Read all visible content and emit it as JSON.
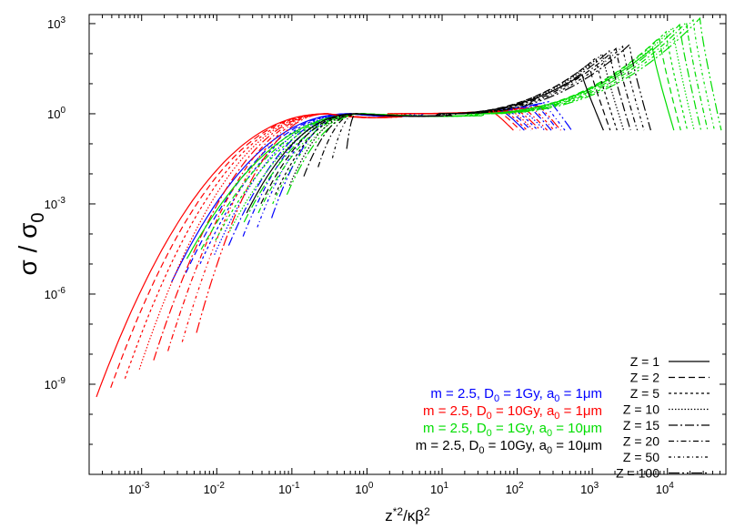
{
  "chart_data": {
    "type": "line",
    "x_scale": "log",
    "y_scale": "log",
    "xlim": [
      0.0002,
      60000
    ],
    "ylim": [
      1e-12,
      2000
    ],
    "xlabel": "z*2/κβ2",
    "ylabel": "σ / σ0",
    "x_ticks": [
      {
        "value": 0.001,
        "base": "10",
        "exp": "-3"
      },
      {
        "value": 0.01,
        "base": "10",
        "exp": "-2"
      },
      {
        "value": 0.1,
        "base": "10",
        "exp": "-1"
      },
      {
        "value": 1,
        "base": "10",
        "exp": "0"
      },
      {
        "value": 10,
        "base": "10",
        "exp": "1"
      },
      {
        "value": 100,
        "base": "10",
        "exp": "2"
      },
      {
        "value": 1000,
        "base": "10",
        "exp": "3"
      },
      {
        "value": 10000,
        "base": "10",
        "exp": "4"
      }
    ],
    "y_ticks": [
      {
        "value": 1e-09,
        "base": "10",
        "exp": "-9"
      },
      {
        "value": 1e-06,
        "base": "10",
        "exp": "-6"
      },
      {
        "value": 0.001,
        "base": "10",
        "exp": "-3"
      },
      {
        "value": 1,
        "base": "10",
        "exp": "0"
      },
      {
        "value": 1000,
        "base": "10",
        "exp": "3"
      }
    ],
    "style_legend": [
      {
        "label": "Z = 1",
        "z": 1,
        "dash": ""
      },
      {
        "label": "Z = 2",
        "z": 2,
        "dash": "7,4"
      },
      {
        "label": "Z = 5",
        "z": 5,
        "dash": "3,3"
      },
      {
        "label": "Z = 10",
        "z": 10,
        "dash": "1.5,2"
      },
      {
        "label": "Z = 15",
        "z": 15,
        "dash": "10,3,2,3"
      },
      {
        "label": "Z = 20",
        "z": 20,
        "dash": "6,3,1.5,3"
      },
      {
        "label": "Z = 50",
        "z": 50,
        "dash": "3,3,1,3"
      },
      {
        "label": "Z = 100",
        "z": 100,
        "dash": "12,3,2,3,2,3"
      }
    ],
    "legend_position": "bottom-right",
    "series": [
      {
        "name": "m = 2.5, D0 = 1Gy, a0 = 1μm",
        "color": "#0000ff",
        "xstart": 0.0025,
        "ystart": 2.5e-06,
        "shift": 1,
        "peak_end": 530,
        "peak_max": 2.6
      },
      {
        "name": "m = 2.5, D0 = 10Gy, a0 = 1μm",
        "color": "#ff0000",
        "xstart": 0.00025,
        "ystart": 3.8e-10,
        "shift": 0.5,
        "peak_end": 380,
        "peak_max": 1.8
      },
      {
        "name": "m = 2.5, D0 = 1Gy, a0 = 10μm",
        "color": "#00dd00",
        "xstart": 0.004,
        "ystart": 1.5e-05,
        "shift": 1.5,
        "peak_end": 52000,
        "peak_max": 1500
      },
      {
        "name": "m = 2.5, D0 = 10Gy, a0 = 10μm",
        "color": "#000000",
        "xstart": 0.025,
        "ystart": 0.0005,
        "shift": 1.2,
        "peak_end": 6000,
        "peak_max": 200
      }
    ],
    "series_legend": [
      {
        "pre": "m = 2.5, D",
        "sub1": "0",
        "mid": " = 1Gy, a",
        "sub2": "0",
        "post": " = 1μm",
        "color": "#0000ff"
      },
      {
        "pre": "m = 2.5, D",
        "sub1": "0",
        "mid": " = 10Gy, a",
        "sub2": "0",
        "post": " = 1μm",
        "color": "#ff0000"
      },
      {
        "pre": "m = 2.5, D",
        "sub1": "0",
        "mid": " = 1Gy, a",
        "sub2": "0",
        "post": " = 10μm",
        "color": "#00dd00"
      },
      {
        "pre": "m = 2.5, D",
        "sub1": "0",
        "mid": " = 10Gy, a",
        "sub2": "0",
        "post": " = 10μm",
        "color": "#000000"
      }
    ],
    "axis_title": {
      "x": {
        "base": "z",
        "sup1": "*2",
        "mid": "/κβ",
        "sup2": "2"
      },
      "y": {
        "base": "σ / σ",
        "sub": "0"
      }
    }
  }
}
